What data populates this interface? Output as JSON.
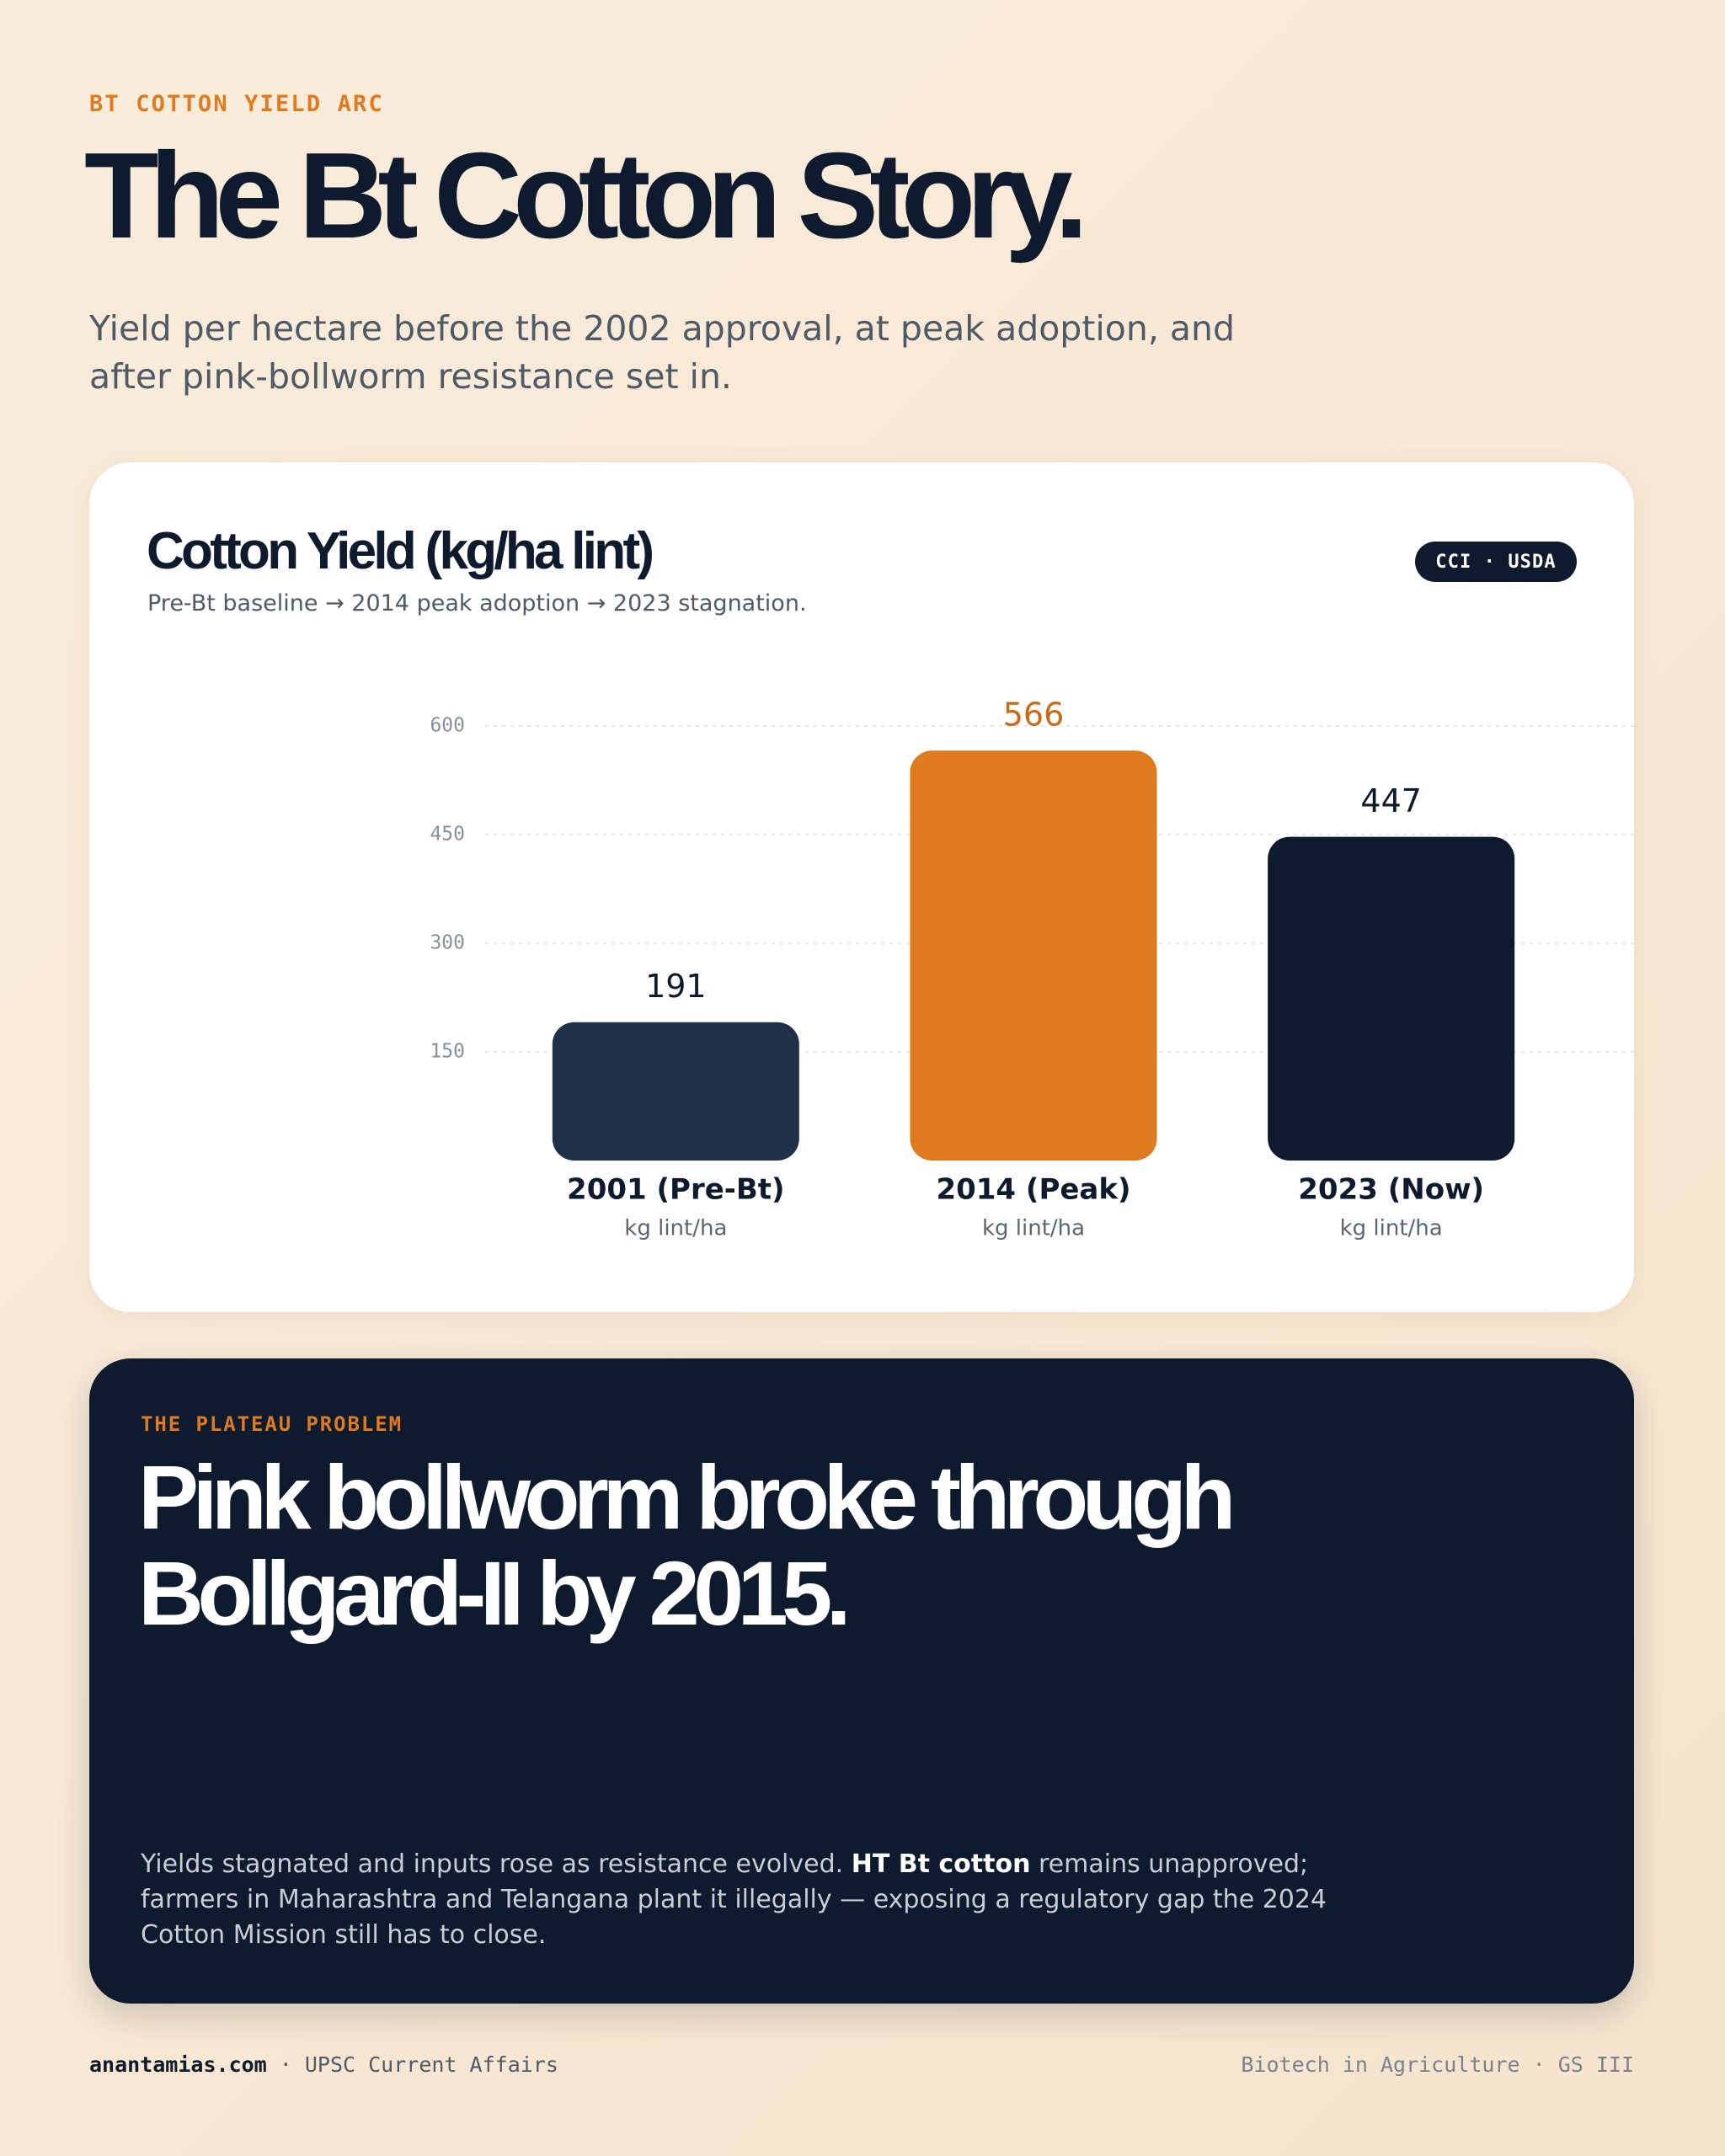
{
  "kicker": "BT COTTON YIELD ARC",
  "title": "The Bt Cotton Story.",
  "subtitle": "Yield per hectare before the 2002 approval, at peak adoption, and after pink-bollworm resistance set in.",
  "chart_data": {
    "type": "bar",
    "title": "Cotton Yield (kg/ha lint)",
    "subtitle": "Pre-Bt baseline → 2014 peak adoption → 2023 stagnation.",
    "badge": "CCI · USDA",
    "categories": [
      "2001 (Pre-Bt)",
      "2014 (Peak)",
      "2023 (Now)"
    ],
    "category_sublabels": [
      "kg lint/ha",
      "kg lint/ha",
      "kg lint/ha"
    ],
    "values": [
      191,
      566,
      447
    ],
    "colors": [
      "#1f3049",
      "#e07a1f",
      "#0e1a2d"
    ],
    "ylim": [
      0,
      600
    ],
    "yticks": [
      150,
      300,
      450,
      600
    ],
    "grid": true
  },
  "panel": {
    "kicker": "THE PLATEAU PROBLEM",
    "headline": [
      "Pink bollworm broke through",
      "Bollgard-II by 2015."
    ],
    "body": [
      "Yields stagnated and inputs rose as resistance evolved. ",
      "HT Bt cotton",
      " remains unapproved; farmers in Maharashtra and Telangana plant it illegally — exposing a regulatory gap the 2024 Cotton Mission still has to close."
    ]
  },
  "footer": {
    "site": "anantamias.com",
    "tag": " · UPSC Current Affairs",
    "right": "Biotech in Agriculture · GS III"
  }
}
